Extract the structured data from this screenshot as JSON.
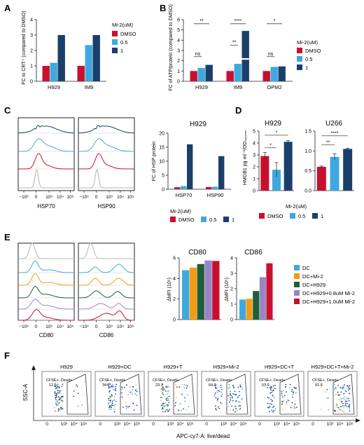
{
  "colors": {
    "dmso": "#c8102e",
    "c05": "#3fa9df",
    "c1": "#1b3f6b",
    "grey": "#b4b4b4",
    "dc": "#3fa9df",
    "dcmi2": "#f39c12",
    "dch929": "#1f5e3a",
    "dch08": "#9b84c4",
    "dch10": "#c8102e",
    "dot1": "#2a3fa0",
    "dot2": "#4fb3c9",
    "dot3": "#e8d23a"
  },
  "panels": {
    "A": "A",
    "B": "B",
    "C": "C",
    "D": "D",
    "E": "E",
    "F": "F"
  },
  "legend_mi2": {
    "title": "Mi-2(uM)",
    "items": [
      "DMSO",
      "0.5",
      "1"
    ]
  },
  "legend_e": [
    "DC",
    "DC+Mi-2",
    "DC+H929",
    "DC+H929+0.8uM Mi-2",
    "DC+H929+1.0uM Mi-2"
  ],
  "flow_axis_ticks": [
    "−10³",
    "0",
    "10³",
    "10⁴",
    "10⁵"
  ],
  "flow_axis_ticks_f": [
    "0",
    "10³",
    "10⁴",
    "10⁵"
  ],
  "flow_c_xlabels": [
    "HSP70",
    "HSP90"
  ],
  "flow_e_xlabels": [
    "CD80",
    "CD86"
  ],
  "flow_f": {
    "ylabel": "SSC-A",
    "xlabel": "APC-cy7-A: live/dead",
    "gate_label": "CFSE+, Dead+",
    "plots": [
      {
        "title": "H929",
        "value": "12.5"
      },
      {
        "title": "H929+DC",
        "value": "34.2"
      },
      {
        "title": "H929+T",
        "value": "23.7"
      },
      {
        "title": "H929+Mi-2",
        "value": "64.0"
      },
      {
        "title": "H929+DC+T",
        "value": "53.9"
      },
      {
        "title": "H929+DC+T+Mi-2",
        "value": "91.9"
      }
    ]
  },
  "chart_data": [
    {
      "panel": "A",
      "type": "bar",
      "categories": [
        "H929",
        "IM9"
      ],
      "series": [
        {
          "name": "DMSO",
          "values": [
            1,
            1
          ]
        },
        {
          "name": "0.5",
          "values": [
            1.2,
            2.35
          ]
        },
        {
          "name": "1",
          "values": [
            3.0,
            3.0
          ]
        }
      ],
      "ylabel": "FC to CRT⁺ (compared to DMSO)",
      "ylim": [
        0,
        4
      ],
      "yticks": [
        "0",
        "1",
        "2",
        "3",
        "4"
      ]
    },
    {
      "panel": "B",
      "type": "bar",
      "categories": [
        "H929",
        "IM9",
        "OPM2"
      ],
      "series": [
        {
          "name": "DMSO",
          "values": [
            1,
            1,
            1
          ]
        },
        {
          "name": "0.5",
          "values": [
            1.3,
            1.7,
            1.4
          ]
        },
        {
          "name": "1",
          "values": [
            1.6,
            2.1,
            1.45
          ]
        }
      ],
      "extra_segment": {
        "category": "IM9",
        "series": "1",
        "top": 4.9
      },
      "ylabel": "FC of ATP/protein (compared to DMSO)",
      "ylim": [
        0,
        6
      ],
      "yticks": [
        "0",
        "1",
        "2",
        "3",
        "4",
        "5",
        "6"
      ],
      "annotations": [
        "**",
        "ns",
        "****",
        "**",
        "*",
        "ns"
      ]
    },
    {
      "panel": "C",
      "type": "bar",
      "title": "H929",
      "categories": [
        "HSP70",
        "HSP90"
      ],
      "series": [
        {
          "name": "DMSO",
          "values": [
            0.7,
            0.8
          ]
        },
        {
          "name": "0.5",
          "values": [
            1.1,
            0.9
          ]
        },
        {
          "name": "1",
          "values": [
            16.0,
            11.8
          ]
        }
      ],
      "ylabel": "FC of HSP protein",
      "ylim": [
        0,
        20
      ],
      "yticks": [
        "0",
        "5",
        "10",
        "15",
        "20"
      ]
    },
    {
      "panel": "D1",
      "type": "bar",
      "title": "H929",
      "categories": [
        "DMSO",
        "0.5",
        "1"
      ],
      "values": [
        2.9,
        1.75,
        4.1
      ],
      "errors": [
        0.3,
        0.6,
        0.1
      ],
      "ylabel": "HMGB1 pg ml⁻¹/OD₄₅₀ₙₘ",
      "ylim": [
        0,
        5
      ],
      "yticks": [
        "0",
        "1",
        "2",
        "3",
        "4",
        "5"
      ],
      "annotations": [
        "*",
        "*"
      ]
    },
    {
      "panel": "D2",
      "type": "bar",
      "title": "U266",
      "categories": [
        "DMSO",
        "0.5",
        "1"
      ],
      "values": [
        0.6,
        0.85,
        1.05
      ],
      "errors": [
        0.02,
        0.08,
        0.02
      ],
      "ylim": [
        0,
        1.5
      ],
      "yticks": [
        "0.0",
        "0.5",
        "1.0",
        "1.5"
      ],
      "annotations": [
        "**",
        "****"
      ]
    },
    {
      "panel": "E1",
      "type": "bar",
      "title": "CD80",
      "categories": [
        "DC",
        "DC+Mi-2",
        "DC+H929",
        "DC+H929+0.8uM Mi-2",
        "DC+H929+1.0uM Mi-2"
      ],
      "values": [
        4.8,
        5.05,
        5.4,
        5.75,
        5.7
      ],
      "ylabel": "ΔMFI (10⁵)",
      "ylim": [
        0,
        6
      ],
      "yticks": [
        "0",
        "2",
        "4",
        "6"
      ]
    },
    {
      "panel": "E2",
      "type": "bar",
      "title": "CD86",
      "categories": [
        "DC",
        "DC+Mi-2",
        "DC+H929",
        "DC+H929+0.8uM Mi-2",
        "DC+H929+1.0uM Mi-2"
      ],
      "values": [
        1.3,
        1.35,
        1.85,
        2.75,
        3.65
      ],
      "ylabel": "ΔMFI (10⁵)",
      "ylim": [
        0,
        4
      ],
      "yticks": [
        "0",
        "1",
        "2",
        "3",
        "4"
      ]
    }
  ]
}
